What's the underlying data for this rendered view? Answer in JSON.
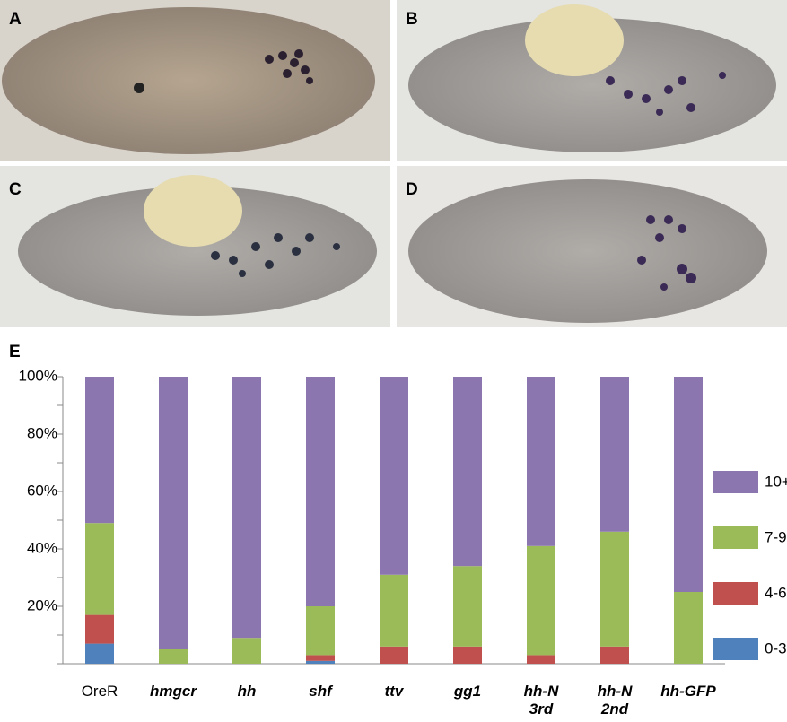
{
  "panel_labels": [
    "A",
    "B",
    "C",
    "D",
    "E"
  ],
  "chart_data": {
    "type": "stacked-bar",
    "categories": [
      "OreR",
      "hmgcr",
      "hh",
      "shf",
      "ttv",
      "gg1",
      "hh-N 3rd",
      "hh-N 2nd",
      "hh-GFP"
    ],
    "category_italic": [
      false,
      true,
      true,
      true,
      true,
      true,
      true,
      true,
      true
    ],
    "series": [
      {
        "name": "0-3",
        "color": "#4f81bd",
        "values": [
          7,
          0,
          0,
          1,
          0,
          0,
          0,
          0,
          0
        ]
      },
      {
        "name": "4-6",
        "color": "#c0504d",
        "values": [
          10,
          0,
          0,
          2,
          6,
          6,
          3,
          6,
          0
        ]
      },
      {
        "name": "7-9",
        "color": "#9bbb59",
        "values": [
          32,
          5,
          9,
          17,
          25,
          28,
          38,
          40,
          25
        ]
      },
      {
        "name": "10+",
        "color": "#8c76b0",
        "values": [
          51,
          95,
          91,
          80,
          69,
          66,
          59,
          54,
          75
        ]
      }
    ],
    "ylim": [
      0,
      100
    ],
    "yticks": [
      {
        "value": 20,
        "label": "20%"
      },
      {
        "value": 40,
        "label": "40%"
      },
      {
        "value": 60,
        "label": "60%"
      },
      {
        "value": 80,
        "label": "80%"
      },
      {
        "value": 100,
        "label": "100%"
      }
    ],
    "minor_yticks": [
      0,
      10,
      30,
      50,
      70,
      90
    ],
    "legend": "right"
  }
}
